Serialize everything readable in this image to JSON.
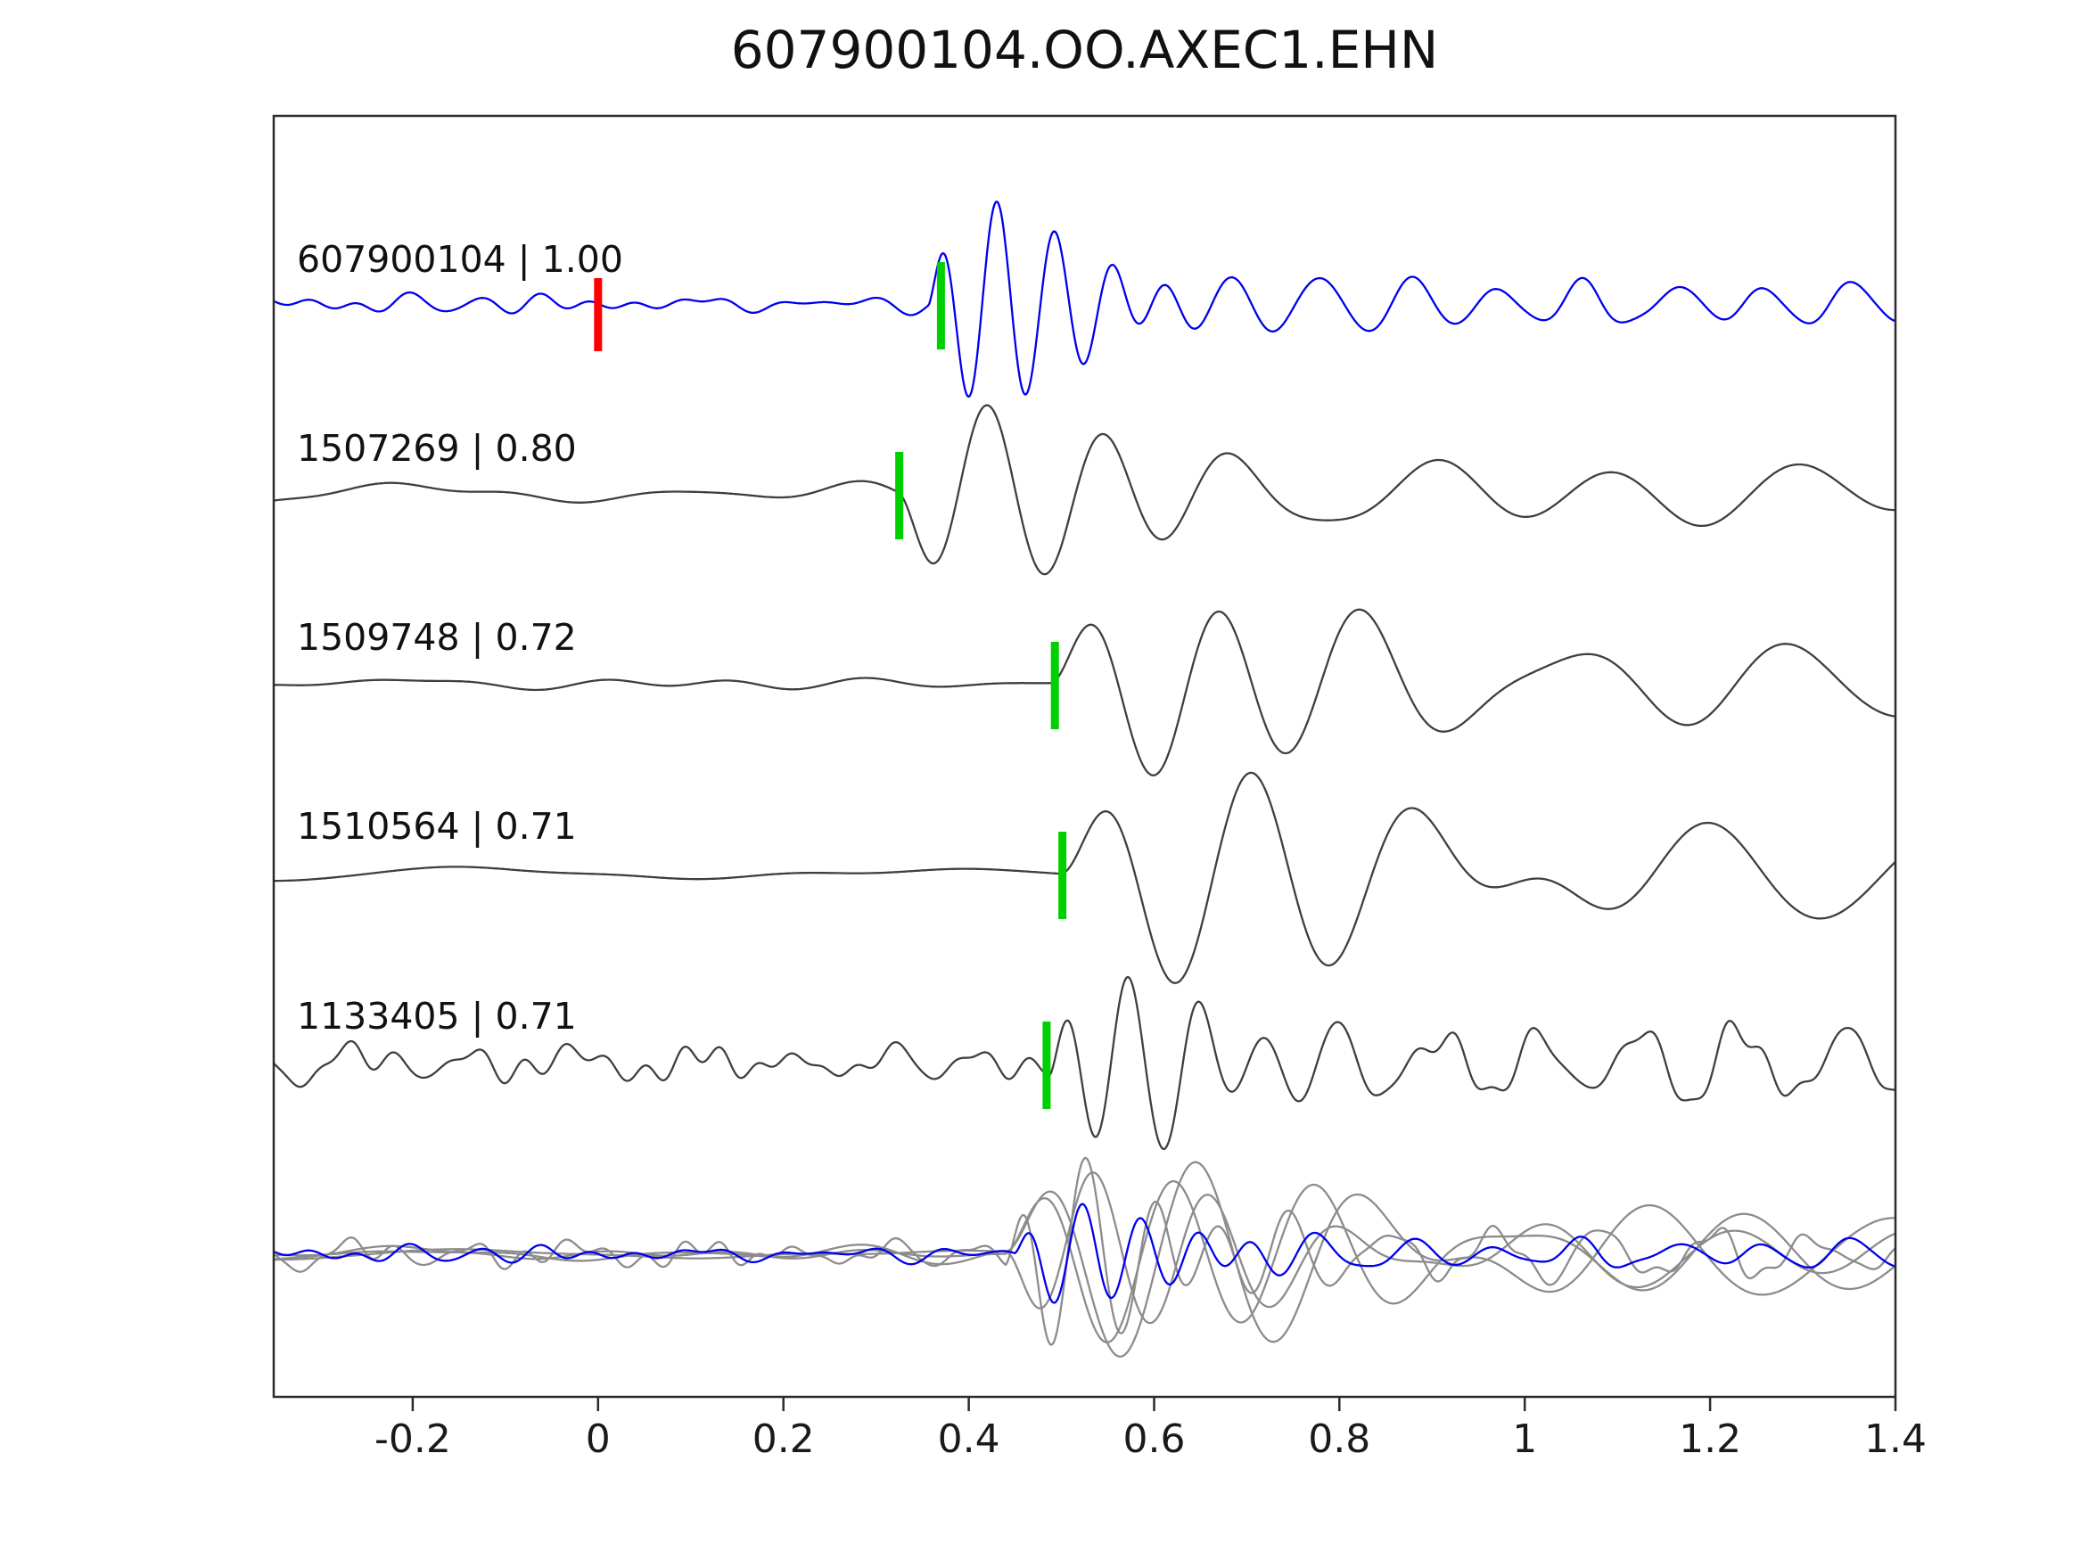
{
  "chart_data": {
    "type": "line",
    "title": "607900104.OO.AXEC1.EHN",
    "xlabel": "",
    "ylabel": "",
    "xlim": [
      -0.35,
      1.4
    ],
    "xticks": [
      -0.2,
      0,
      0.2,
      0.4,
      0.6,
      0.8,
      1.0,
      1.2,
      1.4
    ],
    "xtick_labels": [
      "-0.2",
      "0",
      "0.2",
      "0.4",
      "0.6",
      "0.8",
      "1",
      "1.2",
      "1.4"
    ],
    "grid": false,
    "legend": null,
    "colors": {
      "template": "#0000ee",
      "detection": "#3f3f3f",
      "overlay_gray": "#8c8c8c",
      "pick_green": "#00d000",
      "pick_red": "#ff0000",
      "axis": "#2b2b2b",
      "text": "#1a1a1a"
    },
    "traces": [
      {
        "id": "607900104",
        "cc": "1.00",
        "label": "607900104 | 1.00",
        "color_key": "template",
        "picks": [
          {
            "color": "red",
            "t": 0.0
          },
          {
            "color": "green",
            "t": 0.37
          }
        ],
        "waveform": {
          "seed": 11,
          "noise": {
            "amp": 5,
            "fmin": 5,
            "fmax": 22
          },
          "packets": [
            {
              "t0": 0.357,
              "amp": 112,
              "freq": 16.0,
              "tau": 0.065,
              "phase": 0.5
            },
            {
              "t0": 0.5,
              "amp": 26,
              "freq": 10.5,
              "tau": 0.35,
              "phase": 2.0
            }
          ]
        }
      },
      {
        "id": "1507269",
        "cc": "0.80",
        "label": "1507269 | 0.80",
        "color_key": "detection",
        "picks": [
          {
            "color": "green",
            "t": 0.325
          }
        ],
        "waveform": {
          "seed": 23,
          "noise": {
            "amp": 7,
            "fmin": 2,
            "fmax": 8
          },
          "packets": [
            {
              "t0": 0.325,
              "amp": 100,
              "freq": 7.8,
              "tau": 0.1,
              "phase": 3.3
            },
            {
              "t0": 0.5,
              "amp": 30,
              "freq": 5.0,
              "tau": 0.45,
              "phase": 1.5
            }
          ]
        }
      },
      {
        "id": "1509748",
        "cc": "0.72",
        "label": "1509748 | 0.72",
        "color_key": "detection",
        "picks": [
          {
            "color": "green",
            "t": 0.493
          }
        ],
        "waveform": {
          "seed": 37,
          "noise": {
            "amp": 5,
            "fmin": 2,
            "fmax": 8
          },
          "packets": [
            {
              "t0": 0.49,
              "amp": 105,
              "freq": 6.6,
              "tau": 0.12,
              "phase": 0.2
            },
            {
              "t0": 0.62,
              "amp": 45,
              "freq": 4.2,
              "tau": 0.5,
              "phase": 2.8
            }
          ]
        }
      },
      {
        "id": "1510564",
        "cc": "0.71",
        "label": "1510564 | 0.71",
        "color_key": "detection",
        "picks": [
          {
            "color": "green",
            "t": 0.501
          }
        ],
        "waveform": {
          "seed": 51,
          "noise": {
            "amp": 2.5,
            "fmin": 1.5,
            "fmax": 6
          },
          "packets": [
            {
              "t0": 0.5,
              "amp": 118,
              "freq": 6.0,
              "tau": 0.14,
              "phase": 0.1
            },
            {
              "t0": 0.68,
              "amp": 48,
              "freq": 3.8,
              "tau": 0.55,
              "phase": 1.9
            }
          ]
        }
      },
      {
        "id": "1133405",
        "cc": "0.71",
        "label": "1133405 | 0.71",
        "color_key": "detection",
        "picks": [
          {
            "color": "green",
            "t": 0.484
          }
        ],
        "waveform": {
          "seed": 67,
          "noise": {
            "amp": 10,
            "fmin": 5,
            "fmax": 28
          },
          "packets": [
            {
              "t0": 0.488,
              "amp": 105,
              "freq": 13.5,
              "tau": 0.075,
              "phase": 0.6
            },
            {
              "t0": 0.56,
              "amp": 30,
              "freq": 9.0,
              "tau": 0.4,
              "phase": 0.9
            }
          ]
        }
      }
    ],
    "overlay": {
      "description": "all detections aligned and superimposed with template",
      "members": [
        {
          "trace": 1,
          "align_t0": 0.44,
          "amp_scale": 0.95,
          "noise_scale": 0.75,
          "color_key": "overlay_gray"
        },
        {
          "trace": 2,
          "align_t0": 0.44,
          "amp_scale": 0.95,
          "noise_scale": 0.75,
          "color_key": "overlay_gray"
        },
        {
          "trace": 3,
          "align_t0": 0.44,
          "amp_scale": 0.95,
          "noise_scale": 0.75,
          "color_key": "overlay_gray"
        },
        {
          "trace": 4,
          "align_t0": 0.44,
          "amp_scale": 0.95,
          "noise_scale": 0.75,
          "color_key": "overlay_gray"
        },
        {
          "trace": 0,
          "align_t0": 0.45,
          "amp_scale": 0.55,
          "noise_scale": 0.9,
          "color_key": "template"
        }
      ]
    }
  }
}
